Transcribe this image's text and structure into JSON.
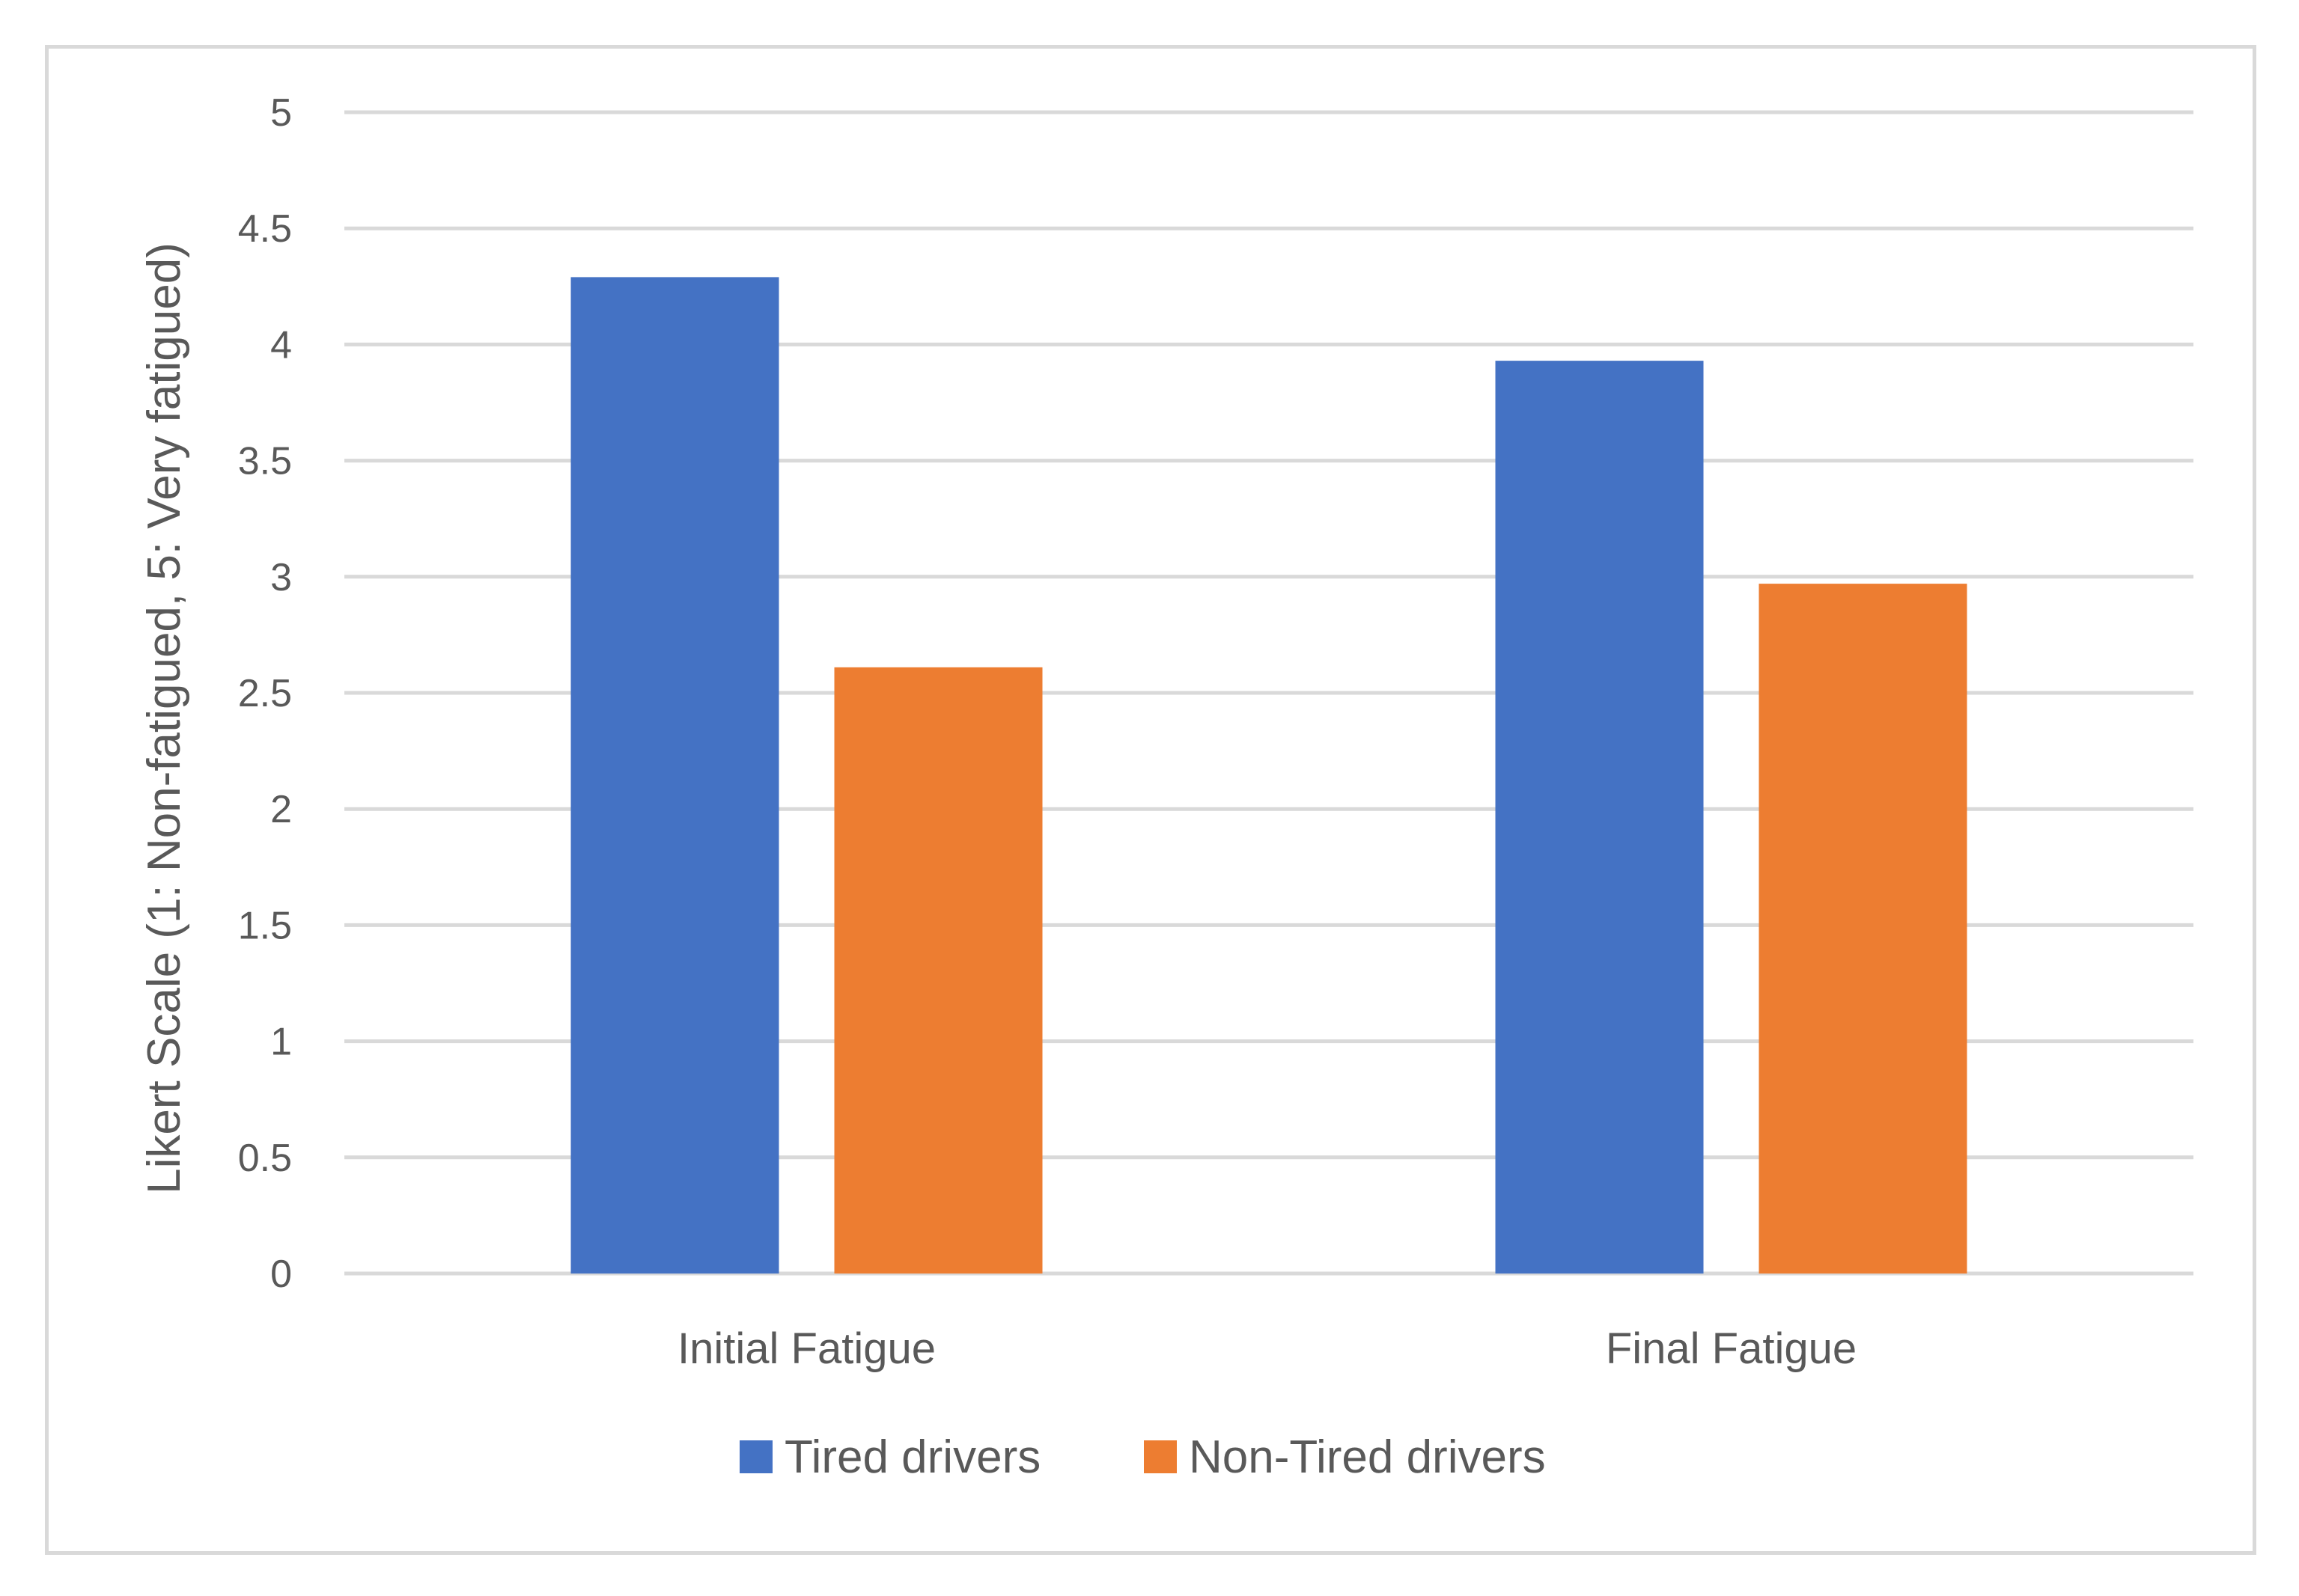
{
  "chart_data": {
    "type": "bar",
    "categories": [
      "Initial Fatigue",
      "Final Fatigue"
    ],
    "series": [
      {
        "name": "Tired drivers",
        "values": [
          4.29,
          3.93
        ],
        "color": "#4472C4"
      },
      {
        "name": "Non-Tired drivers",
        "values": [
          2.61,
          2.97
        ],
        "color": "#ED7D31"
      }
    ],
    "title": "",
    "xlabel": "",
    "ylabel": "Likert Scale (1: Non-fatigued, 5: Very fatigued)",
    "ylim": [
      0,
      5
    ],
    "yticks": [
      "0",
      "0.5",
      "1",
      "1.5",
      "2",
      "2.5",
      "3",
      "3.5",
      "4",
      "4.5",
      "5"
    ],
    "grid": true,
    "gridline_color": "#d9d9d9",
    "legend_position": "bottom"
  }
}
